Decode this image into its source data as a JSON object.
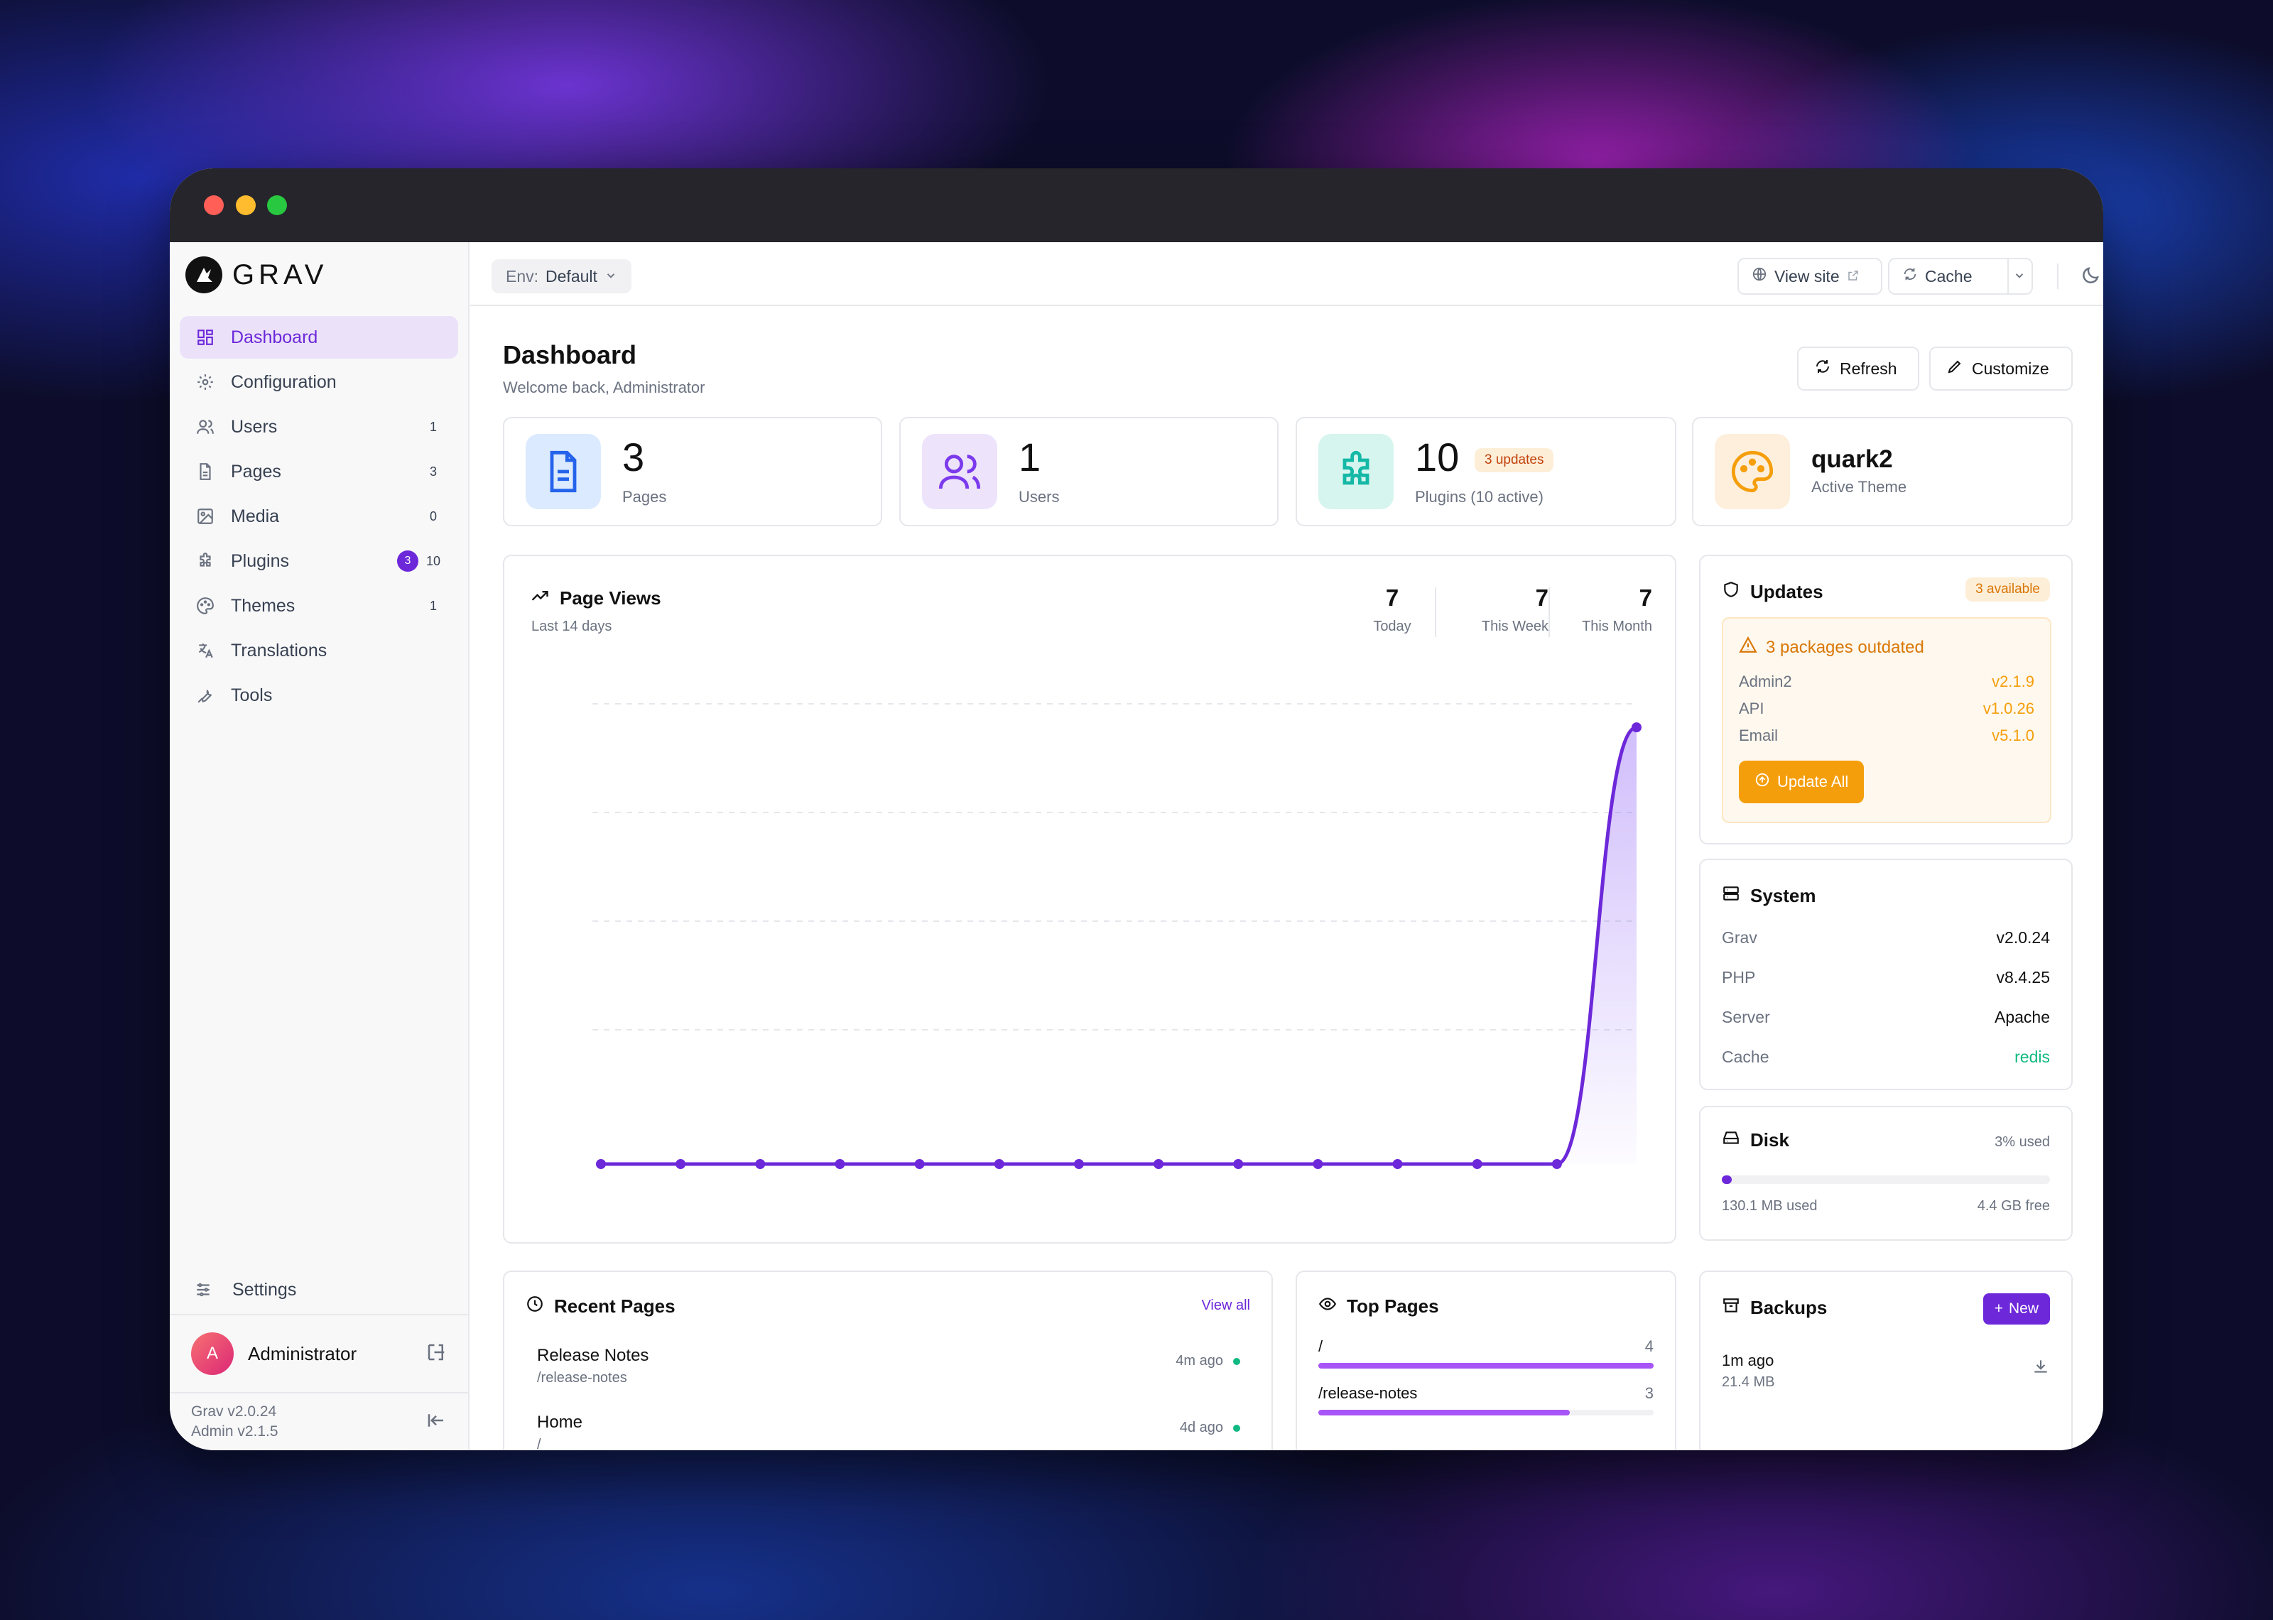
{
  "app": {
    "logo_text": "GRAV"
  },
  "env": {
    "label": "Env:",
    "value": "Default"
  },
  "topbar": {
    "view_site": "View site",
    "cache": "Cache"
  },
  "sidebar": {
    "items": [
      {
        "label": "Dashboard",
        "icon": "dashboard-icon"
      },
      {
        "label": "Configuration",
        "icon": "gear-icon"
      },
      {
        "label": "Users",
        "icon": "users-icon",
        "count": "1"
      },
      {
        "label": "Pages",
        "icon": "file-icon",
        "count": "3"
      },
      {
        "label": "Media",
        "icon": "image-icon",
        "count": "0"
      },
      {
        "label": "Plugins",
        "icon": "puzzle-icon",
        "badge": "3",
        "count": "10"
      },
      {
        "label": "Themes",
        "icon": "palette-icon",
        "count": "1"
      },
      {
        "label": "Translations",
        "icon": "translate-icon"
      },
      {
        "label": "Tools",
        "icon": "wrench-icon"
      }
    ],
    "settings": "Settings",
    "user": {
      "initial": "A",
      "name": "Administrator"
    },
    "version": {
      "grav": "Grav v2.0.24",
      "admin": "Admin v2.1.5"
    }
  },
  "header": {
    "title": "Dashboard",
    "subtitle": "Welcome back, Administrator",
    "refresh": "Refresh",
    "customize": "Customize"
  },
  "stats": {
    "pages": {
      "value": "3",
      "label": "Pages"
    },
    "users": {
      "value": "1",
      "label": "Users"
    },
    "plugins": {
      "value": "10",
      "label": "Plugins (10 active)",
      "badge": "3 updates"
    },
    "theme": {
      "value": "quark2",
      "label": "Active Theme"
    }
  },
  "pageviews": {
    "title": "Page Views",
    "subtitle": "Last 14 days",
    "today": {
      "value": "7",
      "label": "Today"
    },
    "week": {
      "value": "7",
      "label": "This Week"
    },
    "month": {
      "value": "7",
      "label": "This Month"
    }
  },
  "chart_data": {
    "type": "area",
    "title": "Page Views",
    "x": [
      1,
      2,
      3,
      4,
      5,
      6,
      7,
      8,
      9,
      10,
      11,
      12,
      13,
      14
    ],
    "series": [
      {
        "values": [
          0,
          0,
          0,
          0,
          0,
          0,
          0,
          0,
          0,
          0,
          0,
          0,
          0,
          7
        ]
      }
    ],
    "ylim": [
      0,
      7.4
    ],
    "grid": true,
    "color": "#6d28d9"
  },
  "updates": {
    "title": "Updates",
    "badge": "3 available",
    "warning": "3 packages outdated",
    "packages": [
      {
        "name": "Admin2",
        "version": "v2.1.9"
      },
      {
        "name": "API",
        "version": "v1.0.26"
      },
      {
        "name": "Email",
        "version": "v5.1.0"
      }
    ],
    "button": "Update All"
  },
  "system": {
    "title": "System",
    "rows": [
      {
        "key": "Grav",
        "value": "v2.0.24"
      },
      {
        "key": "PHP",
        "value": "v8.4.25"
      },
      {
        "key": "Server",
        "value": "Apache"
      },
      {
        "key": "Cache",
        "value": "redis"
      }
    ]
  },
  "disk": {
    "title": "Disk",
    "used_pct_label": "3% used",
    "used_fraction": 0.03,
    "used": "130.1 MB used",
    "free": "4.4 GB free"
  },
  "recent": {
    "title": "Recent Pages",
    "view_all": "View all",
    "items": [
      {
        "title": "Release Notes",
        "path": "/release-notes",
        "time": "4m ago"
      },
      {
        "title": "Home",
        "path": "/",
        "time": "4d ago"
      }
    ]
  },
  "top_pages": {
    "title": "Top Pages",
    "items": [
      {
        "path": "/",
        "count": "4",
        "fraction": 1.0
      },
      {
        "path": "/release-notes",
        "count": "3",
        "fraction": 0.75
      }
    ]
  },
  "backups": {
    "title": "Backups",
    "new_label": "New",
    "items": [
      {
        "time": "1m ago",
        "size": "21.4 MB"
      }
    ]
  },
  "colors": {
    "accent": "#6d28d9",
    "orange": "#f59e0b",
    "green": "#10b981"
  }
}
